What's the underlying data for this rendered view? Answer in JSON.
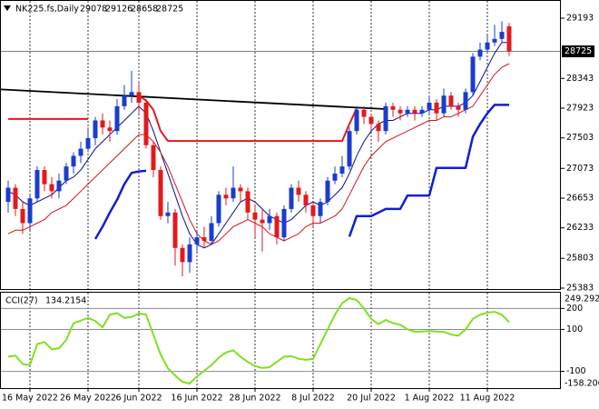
{
  "chart_data": [
    {
      "type": "candlestick",
      "title": "NK225.fs,Daily",
      "categories": [
        null,
        null,
        null,
        "16 May 2022",
        null,
        null,
        null,
        null,
        null,
        null,
        null,
        "26 May 2022",
        null,
        null,
        null,
        null,
        null,
        null,
        "6 Jun 2022",
        null,
        null,
        null,
        null,
        null,
        null,
        null,
        "16 Jun 2022",
        null,
        null,
        null,
        null,
        null,
        null,
        null,
        "28 Jun 2022",
        null,
        null,
        null,
        null,
        null,
        null,
        null,
        "8 Jul 2022",
        null,
        null,
        null,
        null,
        null,
        null,
        null,
        "20 Jul 2022",
        null,
        null,
        null,
        null,
        null,
        null,
        null,
        "1 Aug 2022",
        null,
        null,
        null,
        null,
        null,
        null,
        null,
        "11 Aug 2022",
        null,
        null,
        null
      ],
      "open": [
        26600,
        26800,
        26500,
        26300,
        26650,
        27050,
        26850,
        26750,
        26900,
        27100,
        27250,
        27350,
        27500,
        27750,
        27650,
        27600,
        27950,
        28100,
        28150,
        28000,
        27400,
        27050,
        26400,
        26450,
        25950,
        25750,
        26000,
        26100,
        26050,
        26300,
        26700,
        26650,
        26800,
        26750,
        26450,
        26350,
        26300,
        26400,
        26100,
        26500,
        26800,
        26700,
        26550,
        26400,
        26600,
        26900,
        27000,
        27100,
        27600,
        27900,
        27800,
        27700,
        27600,
        27950,
        27900,
        27850,
        27900,
        27850,
        27900,
        28000,
        27850,
        28100,
        27950,
        27900,
        28150,
        28650,
        28750,
        28850,
        28900,
        29078
      ],
      "high": [
        26900,
        26850,
        26600,
        26700,
        27100,
        27100,
        26950,
        27000,
        27150,
        27300,
        27450,
        27650,
        27800,
        27850,
        27750,
        28050,
        28250,
        28450,
        28300,
        28050,
        27450,
        27100,
        26600,
        26500,
        26000,
        26100,
        26200,
        26250,
        26400,
        26750,
        26800,
        27100,
        26850,
        26800,
        26550,
        26500,
        26500,
        26450,
        26550,
        26850,
        26900,
        26750,
        26600,
        26650,
        26950,
        27100,
        27250,
        27650,
        27950,
        27950,
        27850,
        27750,
        28000,
        28000,
        27950,
        27950,
        27950,
        27950,
        28100,
        28050,
        28200,
        28150,
        28000,
        28200,
        28700,
        28850,
        28950,
        29100,
        29150,
        29126
      ],
      "low": [
        26450,
        26400,
        26150,
        26200,
        26600,
        26750,
        26650,
        26650,
        26850,
        27000,
        27150,
        27300,
        27400,
        27550,
        27450,
        27550,
        27900,
        28000,
        27850,
        27350,
        26950,
        26350,
        26300,
        25700,
        25550,
        25600,
        25900,
        25950,
        26000,
        26250,
        26550,
        26600,
        26600,
        26350,
        26100,
        25900,
        26200,
        26000,
        26050,
        26450,
        26600,
        26450,
        26250,
        26300,
        26550,
        26850,
        26950,
        27050,
        27550,
        27700,
        27600,
        27450,
        27550,
        27800,
        27750,
        27800,
        27750,
        27800,
        27850,
        27750,
        27800,
        27900,
        27800,
        27850,
        28100,
        28600,
        28700,
        28800,
        28850,
        28658
      ],
      "close": [
        26800,
        26500,
        26300,
        26650,
        27050,
        26850,
        26750,
        26900,
        27100,
        27250,
        27350,
        27500,
        27750,
        27650,
        27600,
        27950,
        28100,
        28150,
        28000,
        27400,
        27050,
        26400,
        26450,
        25950,
        25750,
        26000,
        26100,
        26050,
        26300,
        26700,
        26650,
        26800,
        26750,
        26450,
        26350,
        26300,
        26400,
        26100,
        26500,
        26800,
        26700,
        26550,
        26400,
        26600,
        26900,
        27000,
        27100,
        27600,
        27900,
        27800,
        27700,
        27600,
        27950,
        27900,
        27850,
        27900,
        27850,
        27900,
        28000,
        27850,
        28100,
        27950,
        27900,
        28150,
        28650,
        28750,
        28850,
        28900,
        29000,
        28725
      ],
      "up_color": "#1b3ccc",
      "down_color": "#e3191c",
      "series": [
        {
          "color": "#0c0c9a",
          "width": 1,
          "values": [
            26750,
            26700,
            26600,
            26550,
            26600,
            26650,
            26700,
            26800,
            26900,
            26950,
            27050,
            27200,
            27350,
            27450,
            27550,
            27650,
            27750,
            27850,
            27950,
            27850,
            27600,
            27300,
            27000,
            26700,
            26400,
            26150,
            26000,
            25950,
            26000,
            26150,
            26300,
            26450,
            26600,
            26650,
            26600,
            26500,
            26400,
            26350,
            26300,
            26350,
            26450,
            26550,
            26600,
            26550,
            26600,
            26700,
            26800,
            27000,
            27250,
            27450,
            27600,
            27700,
            27750,
            27750,
            27800,
            27850,
            27850,
            27850,
            27900,
            27900,
            27950,
            27950,
            27950,
            28000,
            28100,
            28300,
            28500,
            28700,
            28850,
            28850
          ]
        },
        {
          "color": "#d81418",
          "width": 1,
          "values": [
            26150,
            26200,
            26200,
            26250,
            26300,
            26350,
            26450,
            26500,
            26550,
            26650,
            26750,
            26850,
            26950,
            27050,
            27150,
            27250,
            27350,
            27450,
            27550,
            27550,
            27450,
            27300,
            27100,
            26850,
            26600,
            26350,
            26150,
            26050,
            26000,
            26050,
            26150,
            26250,
            26300,
            26350,
            26300,
            26250,
            26150,
            26100,
            26050,
            26100,
            26150,
            26250,
            26300,
            26300,
            26350,
            26400,
            26500,
            26700,
            26900,
            27100,
            27250,
            27350,
            27450,
            27500,
            27550,
            27600,
            27650,
            27700,
            27750,
            27750,
            27800,
            27800,
            27850,
            27900,
            27950,
            28100,
            28250,
            28400,
            28500,
            28550
          ]
        },
        {
          "color": "#e3191c",
          "width": 2,
          "values": [
            27770,
            27770,
            27770,
            27770,
            27770,
            27770,
            27770,
            27770,
            27770,
            27770,
            27770,
            27770,
            null,
            null,
            null,
            null,
            null,
            null,
            28100,
            28030,
            27900,
            27600,
            27460,
            27460,
            27460,
            27460,
            27460,
            27460,
            27460,
            27460,
            27460,
            27460,
            27460,
            27460,
            27460,
            27460,
            27460,
            27460,
            27460,
            27460,
            27460,
            27460,
            27460,
            27460,
            27460,
            27460,
            27460,
            27700,
            27920,
            null,
            null,
            null,
            null,
            null,
            null,
            null,
            null,
            null,
            null,
            null,
            null,
            null,
            null,
            null,
            null,
            null,
            null,
            null,
            null,
            null
          ]
        },
        {
          "color": "#0f1fd6",
          "width": 2.5,
          "values": [
            null,
            null,
            null,
            null,
            null,
            null,
            null,
            null,
            null,
            null,
            null,
            null,
            26075,
            26250,
            26450,
            26630,
            26850,
            27010,
            27030,
            27040,
            null,
            null,
            null,
            null,
            null,
            null,
            null,
            null,
            null,
            null,
            null,
            null,
            null,
            null,
            null,
            null,
            null,
            null,
            null,
            null,
            null,
            null,
            null,
            null,
            null,
            null,
            null,
            26110,
            26400,
            26400,
            26400,
            26450,
            26500,
            26500,
            26500,
            26690,
            26690,
            26690,
            26690,
            27080,
            27080,
            27080,
            27080,
            27080,
            27520,
            27700,
            27850,
            27970,
            27970,
            27970
          ]
        }
      ],
      "trendline": {
        "color": "#000000",
        "x": [
          0,
          52
        ],
        "values": [
          28190,
          27910
        ]
      },
      "ylim": [
        25370,
        29424
      ],
      "yticks": [
        29193,
        28343,
        27923,
        27503,
        27073,
        26653,
        26233,
        25803,
        25383
      ],
      "grid": false,
      "xgrid": true
    },
    {
      "type": "line",
      "title": "CCI(27)",
      "color": "#80e020",
      "values": [
        -30,
        -25,
        -65,
        -70,
        30,
        40,
        5,
        10,
        50,
        130,
        142,
        155,
        140,
        110,
        170,
        178,
        155,
        160,
        176,
        170,
        75,
        -20,
        -85,
        -120,
        -150,
        -158.206,
        -125,
        -97,
        -70,
        -35,
        -10,
        0,
        -30,
        -55,
        -75,
        -84,
        -80,
        -55,
        -30,
        -28,
        -40,
        -45,
        -40,
        30,
        100,
        170,
        225,
        249.2925,
        240,
        200,
        150,
        125,
        145,
        130,
        122,
        100,
        89,
        90,
        92,
        90,
        88,
        76,
        70,
        100,
        150,
        170,
        180,
        184,
        170,
        134.2154
      ],
      "ylim": [
        -158.206,
        249.2925
      ],
      "yticks": [
        200,
        100,
        -100
      ],
      "level_color": "#8a8aa0"
    }
  ]
}
